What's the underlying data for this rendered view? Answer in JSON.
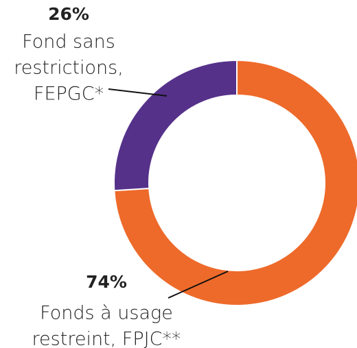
{
  "chart_data": {
    "type": "donut",
    "categories": [
      [
        "Fonds à usage",
        "restreint,  FPJC**"
      ],
      [
        "Fond sans",
        "restrictions,",
        "FEPGC*"
      ]
    ],
    "values": [
      74,
      26
    ],
    "value_labels": [
      "74%",
      "26%"
    ],
    "colors": [
      "#ee6a2a",
      "#55318a"
    ]
  }
}
